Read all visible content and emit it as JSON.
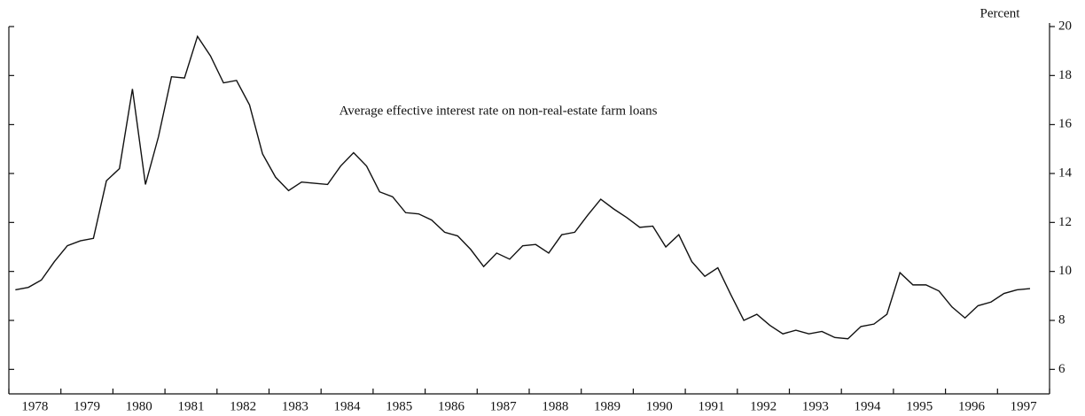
{
  "chart_data": {
    "type": "line",
    "annotation": "Average effective interest rate on non-real-estate farm loans",
    "y_label": "Percent",
    "xlim": [
      1978,
      1998
    ],
    "xticks": [
      1978,
      1979,
      1980,
      1981,
      1982,
      1983,
      1984,
      1985,
      1986,
      1987,
      1988,
      1989,
      1990,
      1991,
      1992,
      1993,
      1994,
      1995,
      1996,
      1997,
      1998
    ],
    "xlabels": [
      1978,
      1979,
      1980,
      1981,
      1982,
      1983,
      1984,
      1985,
      1986,
      1987,
      1988,
      1989,
      1990,
      1991,
      1992,
      1993,
      1994,
      1995,
      1996,
      1997
    ],
    "ylim": [
      5,
      20
    ],
    "yticks": [
      6,
      8,
      10,
      12,
      14,
      16,
      18,
      20
    ],
    "x": [
      1978.125,
      1978.375,
      1978.625,
      1978.875,
      1979.125,
      1979.375,
      1979.625,
      1979.875,
      1980.125,
      1980.375,
      1980.625,
      1980.875,
      1981.125,
      1981.375,
      1981.625,
      1981.875,
      1982.125,
      1982.375,
      1982.625,
      1982.875,
      1983.125,
      1983.375,
      1983.625,
      1983.875,
      1984.125,
      1984.375,
      1984.625,
      1984.875,
      1985.125,
      1985.375,
      1985.625,
      1985.875,
      1986.125,
      1986.375,
      1986.625,
      1986.875,
      1987.125,
      1987.375,
      1987.625,
      1987.875,
      1988.125,
      1988.375,
      1988.625,
      1988.875,
      1989.125,
      1989.375,
      1989.625,
      1989.875,
      1990.125,
      1990.375,
      1990.625,
      1990.875,
      1991.125,
      1991.375,
      1991.625,
      1991.875,
      1992.125,
      1992.375,
      1992.625,
      1992.875,
      1993.125,
      1993.375,
      1993.625,
      1993.875,
      1994.125,
      1994.375,
      1994.625,
      1994.875,
      1995.125,
      1995.375,
      1995.625,
      1995.875,
      1996.125,
      1996.375,
      1996.625,
      1996.875,
      1997.125,
      1997.375,
      1997.625
    ],
    "series": [
      {
        "name": "Average effective interest rate",
        "color": "#111111",
        "values": [
          9.25,
          9.35,
          9.65,
          10.4,
          11.05,
          11.25,
          11.35,
          13.7,
          14.2,
          17.45,
          13.55,
          15.5,
          17.95,
          17.9,
          19.6,
          18.8,
          17.7,
          17.8,
          16.8,
          14.8,
          13.85,
          13.3,
          13.65,
          13.6,
          13.55,
          14.3,
          14.85,
          14.3,
          13.25,
          13.05,
          12.4,
          12.35,
          12.1,
          11.6,
          11.45,
          10.9,
          10.2,
          10.75,
          10.5,
          11.05,
          11.1,
          10.75,
          11.5,
          11.6,
          12.3,
          12.95,
          12.55,
          12.2,
          11.8,
          11.85,
          11.0,
          11.5,
          10.4,
          9.8,
          10.15,
          9.05,
          8.0,
          8.25,
          7.8,
          7.45,
          7.6,
          7.45,
          7.55,
          7.3,
          7.25,
          7.75,
          7.85,
          8.25,
          9.95,
          9.45,
          9.45,
          9.2,
          8.55,
          8.1,
          8.6,
          8.75,
          9.1,
          9.25,
          9.3
        ]
      }
    ]
  }
}
